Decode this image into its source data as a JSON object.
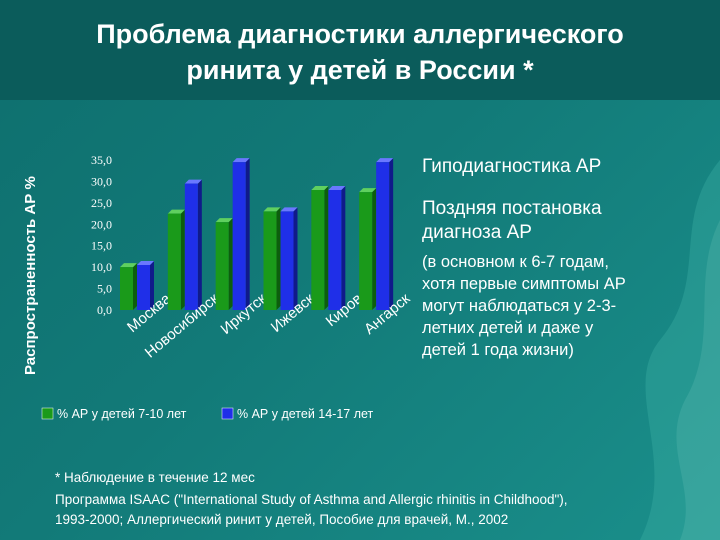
{
  "slide": {
    "title_line1": "Проблема диагностики аллергического",
    "title_line2": "ринита у детей в России *",
    "side_heading1": "Гиподиагностика АР",
    "side_heading2_line1": "Поздняя постановка",
    "side_heading2_line2": "диагноза АР",
    "side_text": [
      "(в основном к 6-7 годам,",
      "хотя первые симптомы АР",
      "могут наблюдаться у 2-3-",
      "летних детей и даже у",
      "детей 1 года жизни)"
    ],
    "footnote": "* Наблюдение в течение 12 мес",
    "source_line1": "Программа ISAAC (\"International Study of Asthma and Allergic rhinitis in Childhood\"),",
    "source_line2": "1993-2000; Аллергический ринит у детей, Пособие для врачей, М., 2002"
  },
  "chart_data": {
    "type": "bar",
    "ylabel": "Распространенность АР %",
    "categories": [
      "Москва",
      "Новосибирск",
      "Иркутск",
      "Ижевск",
      "Киров",
      "Ангарск"
    ],
    "series": [
      {
        "name": "% АР у детей 7-10 лет",
        "values": [
          10.0,
          22.5,
          20.5,
          23.0,
          28.0,
          27.5
        ],
        "color": "#1a9a1a"
      },
      {
        "name": "% АР у детей 14-17 лет",
        "values": [
          10.5,
          29.5,
          34.5,
          23.0,
          28.0,
          34.5
        ],
        "color": "#1f2fe8"
      }
    ],
    "ylim": [
      0,
      35
    ],
    "yticks": [
      "0,0",
      "5,0",
      "10,0",
      "15,0",
      "20,0",
      "25,0",
      "30,0",
      "35,0"
    ],
    "grid": false,
    "legend": "bottom"
  }
}
